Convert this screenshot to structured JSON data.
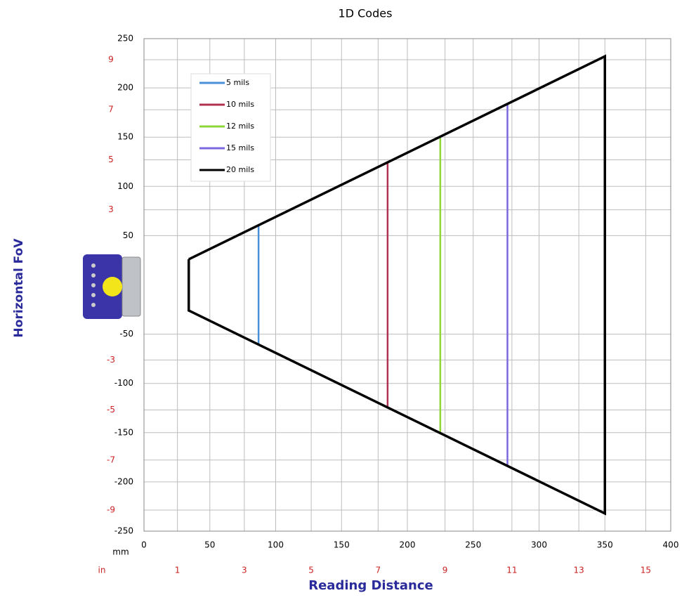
{
  "chart_data": {
    "type": "line",
    "title": "1D Codes",
    "x_label": "Reading Distance",
    "y_label": "Horizontal FoV",
    "x_unit_label": "mm",
    "x2_unit_label": "in",
    "xlim": [
      0,
      400
    ],
    "xticks": [
      0,
      50,
      100,
      150,
      200,
      250,
      300,
      350,
      400
    ],
    "x2lim": [
      0,
      15.748
    ],
    "x2ticks": [
      1,
      3,
      5,
      7,
      9,
      11,
      13,
      15
    ],
    "ylim": [
      -250,
      250
    ],
    "yticks": [
      250,
      200,
      150,
      100,
      50,
      -50,
      -100,
      -150,
      -200,
      -250
    ],
    "y2lim": [
      -9.8425,
      9.8425
    ],
    "y2ticks": [
      9,
      7,
      5,
      3,
      -3,
      -5,
      -7,
      -9
    ],
    "grid": true,
    "legend": "upper left",
    "series": [
      {
        "name": "5 mils",
        "color": "#4a90d9",
        "x": [
          87,
          87
        ],
        "values": [
          60,
          -60
        ]
      },
      {
        "name": "10 mils",
        "color": "#b03050",
        "x": [
          185,
          185
        ],
        "values": [
          125,
          -125
        ]
      },
      {
        "name": "12 mils",
        "color": "#8fd63a",
        "x": [
          225,
          225
        ],
        "values": [
          150,
          -150
        ]
      },
      {
        "name": "15 mils",
        "color": "#7b68e0",
        "x": [
          276,
          276
        ],
        "values": [
          183,
          -183
        ]
      },
      {
        "name": "20 mils",
        "color": "#000000",
        "x": [
          34,
          350,
          350,
          34,
          34
        ],
        "values": [
          26,
          232,
          -232,
          -26,
          26
        ]
      }
    ]
  }
}
